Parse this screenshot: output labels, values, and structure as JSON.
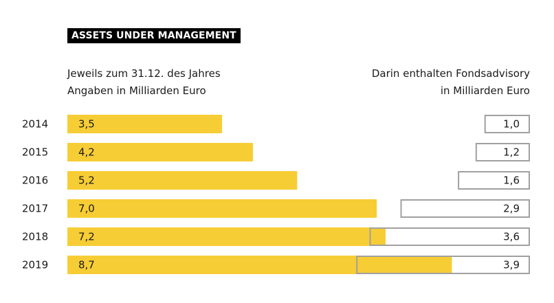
{
  "header": {
    "title": "ASSETS UNDER MANAGEMENT",
    "left_line1": "Jeweils zum 31.12. des Jahres",
    "left_line2": "Angaben in Milliarden Euro",
    "right_line1": "Darin enthalten Fondsadvisory",
    "right_line2": "in Milliarden Euro"
  },
  "chart_data": {
    "type": "bar",
    "orientation": "horizontal",
    "categories": [
      "2014",
      "2015",
      "2016",
      "2017",
      "2018",
      "2019"
    ],
    "series": [
      {
        "values": [
          3.5,
          4.2,
          5.2,
          7.0,
          7.2,
          8.7
        ],
        "labels": [
          "3,5",
          "4,2",
          "5,2",
          "7,0",
          "7,2",
          "8,7"
        ],
        "color": "#f7cd35"
      },
      {
        "values": [
          1.0,
          1.2,
          1.6,
          2.9,
          3.6,
          3.9
        ],
        "labels": [
          "1,0",
          "1,2",
          "1,6",
          "2,9",
          "3,6",
          "3,9"
        ],
        "style": "outline",
        "stroke": "#a0a0a0",
        "anchor": "right"
      }
    ],
    "grid": false,
    "legend": "none"
  }
}
